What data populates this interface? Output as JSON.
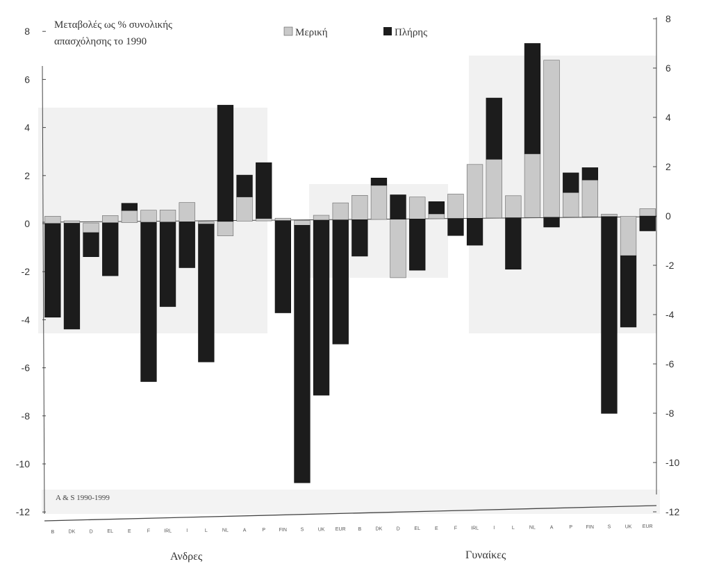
{
  "chart_data": {
    "type": "bar",
    "stacked": true,
    "title_lines": [
      "Μεταβολές ως % συνολικής",
      "απασχόλησης το 1990"
    ],
    "source_note": "A & S 1990-1999",
    "groups": [
      {
        "label": "Ανδρες",
        "start": 0,
        "end": 16
      },
      {
        "label": "Γυναίκες",
        "start": 16,
        "end": 32
      }
    ],
    "legend": [
      "Μερική",
      "Πλήρης"
    ],
    "legend_placement": "top",
    "ylim_left": [
      -12,
      8
    ],
    "ylim_right": [
      -12,
      8
    ],
    "yticks": [
      8,
      6,
      4,
      2,
      0,
      -2,
      -4,
      -6,
      -8,
      -10,
      -12
    ],
    "colors": {
      "partial": "#c9c9c9",
      "full": "#1c1c1c",
      "panel": "#f1f1f1",
      "axis": "#444444"
    },
    "categories": [
      "B",
      "DK",
      "D",
      "EL",
      "E",
      "F",
      "IRL",
      "I",
      "L",
      "NL",
      "A",
      "P",
      "FIN",
      "S",
      "UK",
      "EUR",
      "B",
      "DK",
      "D",
      "EL",
      "E",
      "F",
      "IRL",
      "I",
      "L",
      "NL",
      "A",
      "P",
      "FIN",
      "S",
      "UK",
      "EUR"
    ],
    "series": [
      {
        "name": "Μερική",
        "values": [
          0.3,
          0.1,
          -0.4,
          0.3,
          0.5,
          0.5,
          0.5,
          0.8,
          -0.1,
          -0.6,
          1.0,
          0.1,
          0.1,
          -0.2,
          0.2,
          0.7,
          1.0,
          1.4,
          -2.4,
          0.9,
          0.2,
          1.0,
          2.2,
          2.4,
          0.9,
          2.6,
          6.4,
          1.0,
          1.5,
          0.1,
          -1.6,
          0.3
        ]
      },
      {
        "name": "Πλήρης",
        "values": [
          -3.9,
          -4.4,
          -1.0,
          -2.2,
          0.3,
          -6.6,
          -3.5,
          -1.9,
          -5.7,
          4.8,
          0.9,
          2.3,
          -3.8,
          -10.6,
          -7.2,
          -5.1,
          -1.5,
          0.3,
          1.0,
          -2.1,
          0.5,
          -0.7,
          -1.1,
          2.5,
          -2.1,
          4.5,
          -0.4,
          0.8,
          0.5,
          -8.0,
          -2.9,
          -0.6
        ]
      }
    ]
  }
}
